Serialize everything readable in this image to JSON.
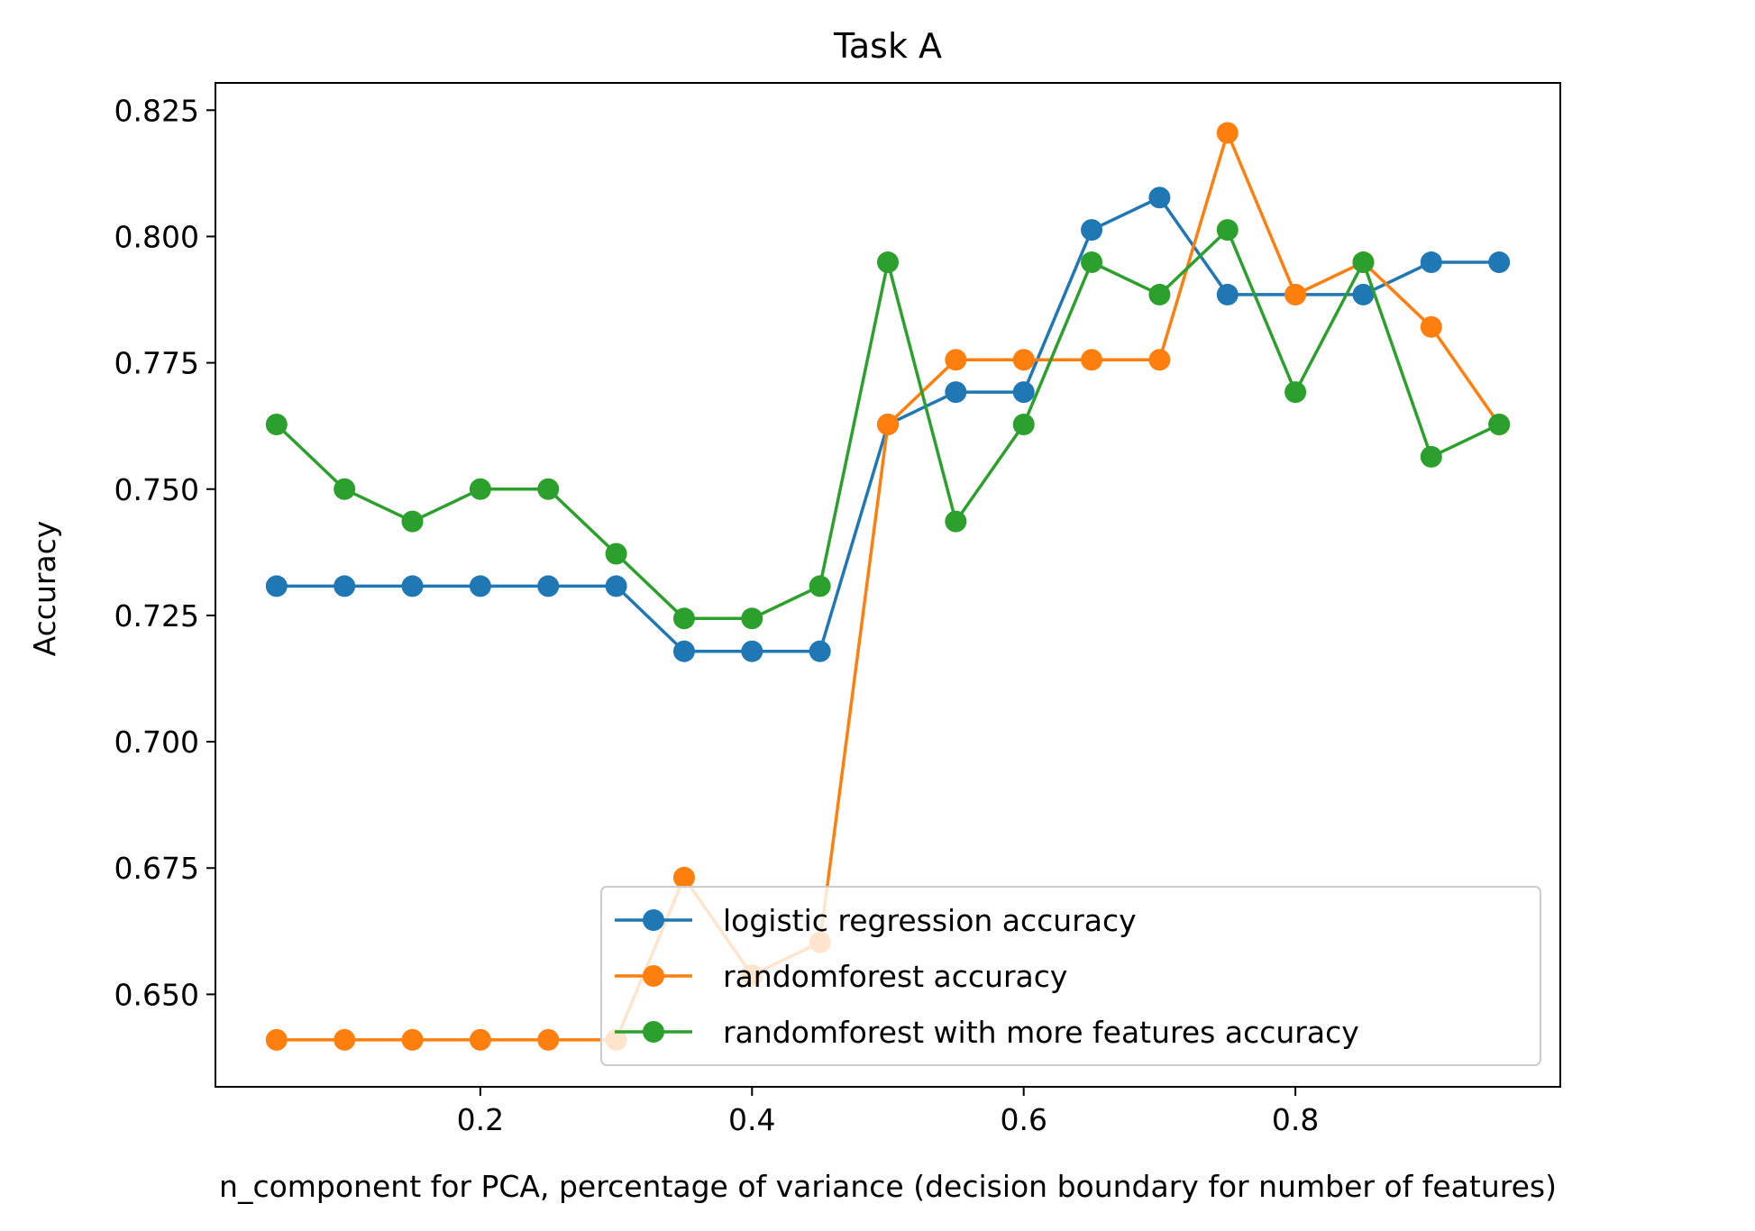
{
  "chart_data": {
    "type": "line",
    "title": "Task A",
    "xlabel": "n_component for PCA, percentage of variance (decision boundary for number of features)",
    "ylabel": "Accuracy",
    "xlim": [
      0.005,
      0.995
    ],
    "ylim": [
      0.6317,
      0.8304
    ],
    "xticks": [
      0.2,
      0.4,
      0.6,
      0.8
    ],
    "xtick_labels": [
      "0.2",
      "0.4",
      "0.6",
      "0.8"
    ],
    "yticks": [
      0.65,
      0.675,
      0.7,
      0.725,
      0.75,
      0.775,
      0.8,
      0.825
    ],
    "ytick_labels": [
      "0.650",
      "0.675",
      "0.700",
      "0.725",
      "0.750",
      "0.775",
      "0.800",
      "0.825"
    ],
    "grid": false,
    "legend_position": "lower-right",
    "x": [
      0.05,
      0.1,
      0.15,
      0.2,
      0.25,
      0.3,
      0.35,
      0.4,
      0.45,
      0.5,
      0.55,
      0.6,
      0.65,
      0.7,
      0.75,
      0.8,
      0.85,
      0.9,
      0.95
    ],
    "series": [
      {
        "name": "logistic regression accuracy",
        "color": "#1f77b4",
        "values": [
          0.7308,
          0.7308,
          0.7308,
          0.7308,
          0.7308,
          0.7308,
          0.7179,
          0.7179,
          0.7179,
          0.7628,
          0.7692,
          0.7692,
          0.8013,
          0.8077,
          0.7885,
          0.7885,
          0.7885,
          0.7949,
          0.7949
        ]
      },
      {
        "name": "randomforest accuracy",
        "color": "#ff7f0e",
        "values": [
          0.641,
          0.641,
          0.641,
          0.641,
          0.641,
          0.641,
          0.6731,
          0.6538,
          0.6603,
          0.7628,
          0.7756,
          0.7756,
          0.7756,
          0.7756,
          0.8205,
          0.7885,
          0.7949,
          0.7821,
          0.7628
        ]
      },
      {
        "name": "randomforest with more features accuracy",
        "color": "#2ca02c",
        "values": [
          0.7628,
          0.75,
          0.7436,
          0.75,
          0.75,
          0.7372,
          0.7244,
          0.7244,
          0.7308,
          0.7949,
          0.7436,
          0.7628,
          0.7949,
          0.7885,
          0.8013,
          0.7692,
          0.7949,
          0.7564,
          0.7628
        ]
      }
    ]
  }
}
